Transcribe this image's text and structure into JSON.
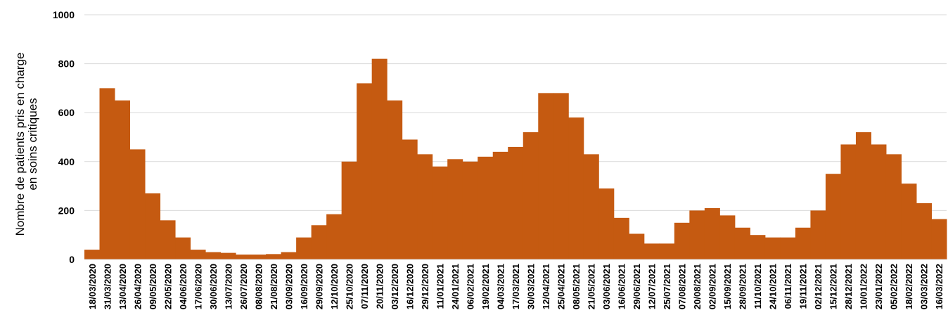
{
  "chart_data": {
    "type": "bar",
    "y_label_lines": [
      "Nombre de patients pris en charge",
      "en soins critiques"
    ],
    "categories": [
      "18/03/2020",
      "31/03/2020",
      "13/04/2020",
      "26/04/2020",
      "09/05/2020",
      "22/05/2020",
      "04/06/2020",
      "17/06/2020",
      "30/06/2020",
      "13/07/2020",
      "26/07/2020",
      "08/08/2020",
      "21/08/2020",
      "03/09/2020",
      "16/09/2020",
      "29/09/2020",
      "12/10/2020",
      "25/10/2020",
      "07/11/2020",
      "20/11/2020",
      "03/12/2020",
      "16/12/2020",
      "29/12/2020",
      "11/01/2021",
      "24/01/2021",
      "06/02/2021",
      "19/02/2021",
      "04/03/2021",
      "17/03/2021",
      "30/03/2021",
      "12/04/2021",
      "25/04/2021",
      "08/05/2021",
      "21/05/2021",
      "03/06/2021",
      "16/06/2021",
      "29/06/2021",
      "12/07/2021",
      "25/07/2021",
      "07/08/2021",
      "20/08/2021",
      "02/09/2021",
      "15/09/2021",
      "28/09/2021",
      "11/10/2021",
      "24/10/2021",
      "06/11/2021",
      "19/11/2021",
      "02/12/2021",
      "15/12/2021",
      "28/12/2021",
      "10/01/2022",
      "23/01/2022",
      "05/02/2022",
      "18/02/2022",
      "03/03/2022",
      "16/03/2022"
    ],
    "values": [
      40,
      700,
      650,
      450,
      270,
      160,
      90,
      40,
      30,
      27,
      20,
      20,
      22,
      30,
      90,
      140,
      185,
      400,
      720,
      820,
      650,
      490,
      430,
      380,
      410,
      400,
      420,
      440,
      460,
      520,
      680,
      680,
      580,
      430,
      290,
      170,
      105,
      65,
      65,
      150,
      200,
      210,
      180,
      130,
      100,
      90,
      90,
      130,
      200,
      350,
      470,
      520,
      470,
      430,
      310,
      230,
      165
    ],
    "color": "#c55a11",
    "ylim": [
      0,
      1000
    ],
    "yticks": [
      0,
      200,
      400,
      600,
      800,
      1000
    ],
    "grid": true
  }
}
